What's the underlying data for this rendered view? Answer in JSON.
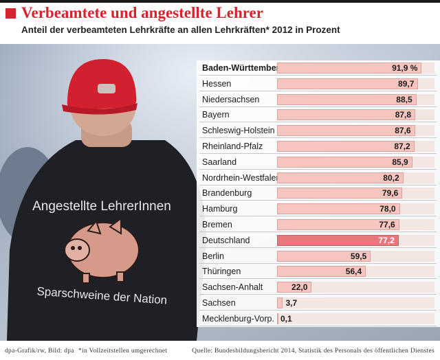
{
  "header": {
    "title": "Verbeamtete und angestellte Lehrer",
    "subtitle": "Anteil der verbeamteten Lehrkräfte an allen Lehrkräften* 2012 in Prozent"
  },
  "photo": {
    "shirt_text_top": "Angestellte LehrerInnen",
    "shirt_text_bottom": "Sparschweine der Nation"
  },
  "colors": {
    "accent": "#d6242f",
    "bar": "#f6c5bf",
    "bar_highlight": "#e8777d",
    "track": "#f3e5e2"
  },
  "chart_data": {
    "type": "bar",
    "orientation": "horizontal",
    "title": "Verbeamtete und angestellte Lehrer",
    "subtitle": "Anteil der verbeamteten Lehrkräfte an allen Lehrkräften* 2012 in Prozent",
    "xlim": [
      0,
      100
    ],
    "grid": false,
    "categories": [
      "Baden-Württemberg",
      "Hessen",
      "Niedersachsen",
      "Bayern",
      "Schleswig-Holstein",
      "Rheinland-Pfalz",
      "Saarland",
      "Nordrhein-Westfalen",
      "Brandenburg",
      "Hamburg",
      "Bremen",
      "Deutschland",
      "Berlin",
      "Thüringen",
      "Sachsen-Anhalt",
      "Sachsen",
      "Mecklenburg-Vorp."
    ],
    "values": [
      91.9,
      89.7,
      88.5,
      87.8,
      87.6,
      87.2,
      85.9,
      80.2,
      79.6,
      78.0,
      77.6,
      77.2,
      59.5,
      56.4,
      22.0,
      3.7,
      0.1
    ],
    "value_labels": [
      "91,9 %",
      "89,7",
      "88,5",
      "87,8",
      "87,6",
      "87,2",
      "85,9",
      "80,2",
      "79,6",
      "78,0",
      "77,6",
      "77,2",
      "59,5",
      "56,4",
      "22,0",
      "3,7",
      "0,1"
    ],
    "highlight": "Deutschland"
  },
  "footer": {
    "credit": "dpa-Grafik/rw, Bild: dpa",
    "note": "*in Vollzeitstellen umgerechnet",
    "source": "Quelle: Bundesbildungsbericht 2014, Statistik des Personals des öffentlichen Dienstes"
  }
}
